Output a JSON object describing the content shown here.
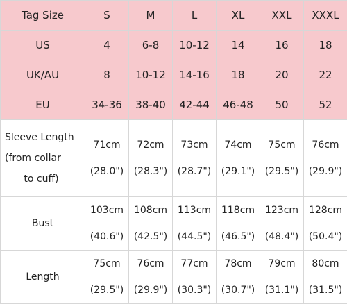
{
  "header": {
    "label": "Tag Size",
    "sizes": [
      "S",
      "M",
      "L",
      "XL",
      "XXL",
      "XXXL"
    ]
  },
  "region_rows": [
    {
      "label": "US",
      "values": [
        "4",
        "6-8",
        "10-12",
        "14",
        "16",
        "18"
      ]
    },
    {
      "label": "UK/AU",
      "values": [
        "8",
        "10-12",
        "14-16",
        "18",
        "20",
        "22"
      ]
    },
    {
      "label": "EU",
      "values": [
        "34-36",
        "38-40",
        "42-44",
        "46-48",
        "50",
        "52"
      ]
    }
  ],
  "sleeve": {
    "label_lines": [
      "Sleeve Length",
      "(from collar",
      "to cuff)"
    ],
    "cm": [
      "71cm",
      "72cm",
      "73cm",
      "74cm",
      "75cm",
      "76cm"
    ],
    "inch": [
      "(28.0\")",
      "(28.3\")",
      "(28.7\")",
      "(29.1\")",
      "(29.5\")",
      "(29.9\")"
    ]
  },
  "bust": {
    "label": "Bust",
    "cm": [
      "103cm",
      "108cm",
      "113cm",
      "118cm",
      "123cm",
      "128cm"
    ],
    "inch": [
      "(40.6\")",
      "(42.5\")",
      "(44.5\")",
      "(46.5\")",
      "(48.4\")",
      "(50.4\")"
    ]
  },
  "length": {
    "label": "Length",
    "cm": [
      "75cm",
      "76cm",
      "77cm",
      "78cm",
      "79cm",
      "80cm"
    ],
    "inch": [
      "(29.5\")",
      "(29.9\")",
      "(30.3\")",
      "(30.7\")",
      "(31.1\")",
      "(31.5\")"
    ]
  },
  "colors": {
    "header_bg": "#f7c9cd",
    "grid_line": "#d7d7d7",
    "text": "#222222"
  }
}
